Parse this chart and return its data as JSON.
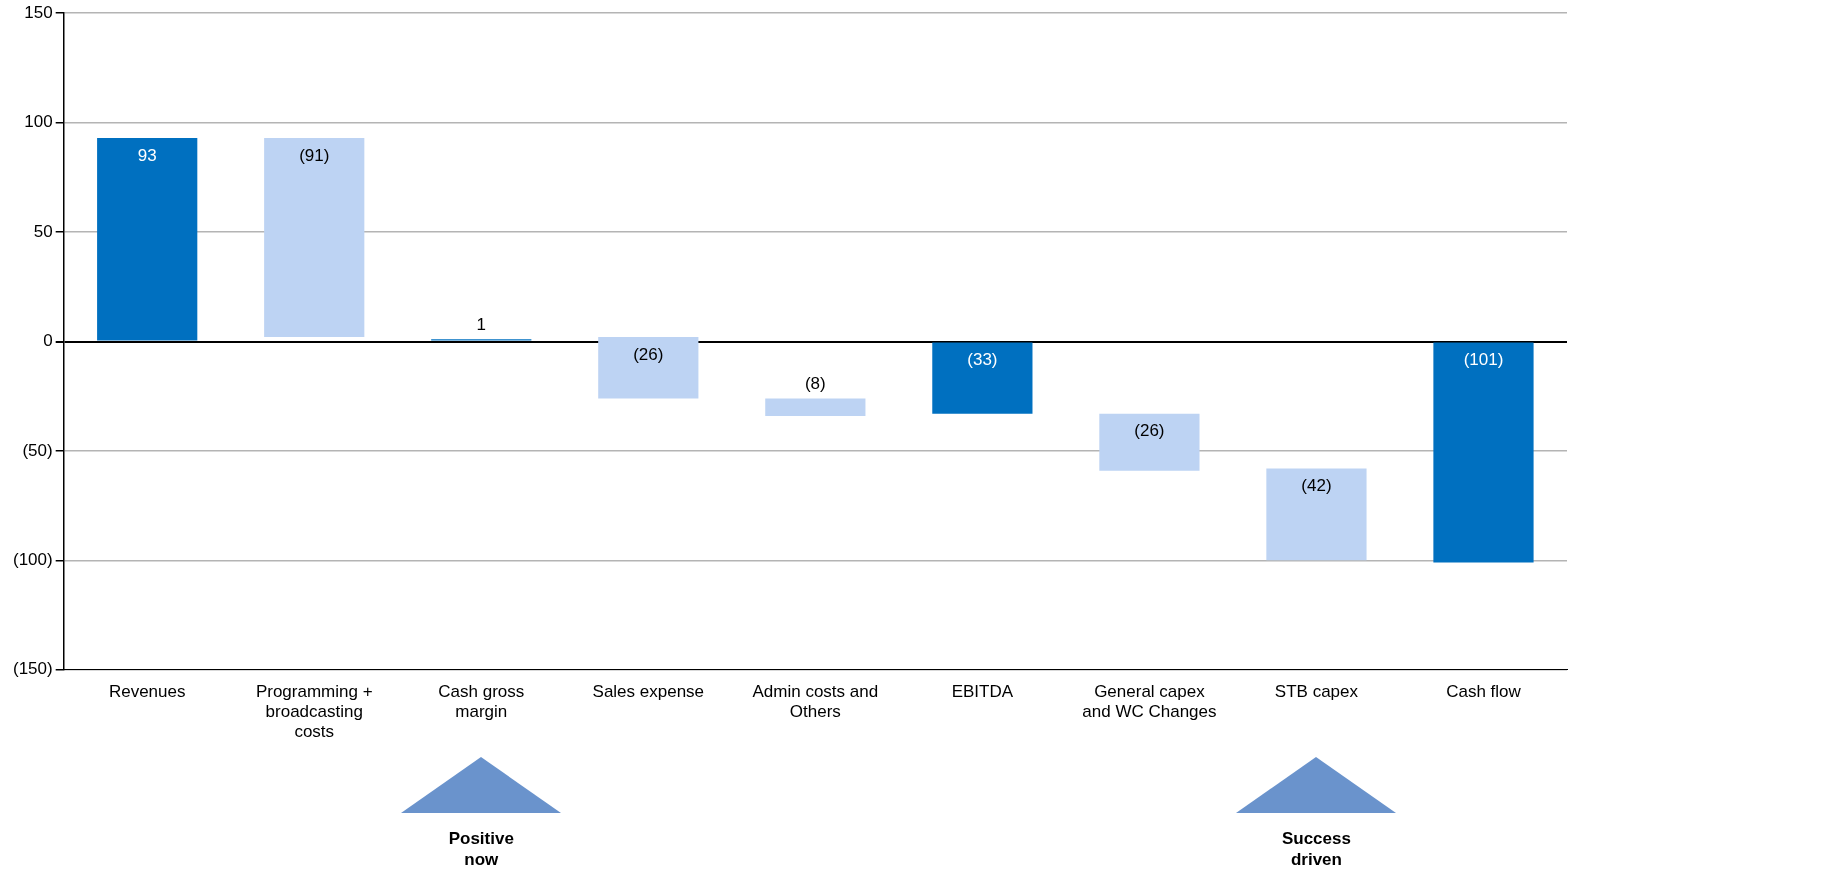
{
  "chart_data": {
    "type": "bar",
    "categories": [
      "Revenues",
      "Programming + broadcasting costs",
      "Cash gross margin",
      "Sales expense",
      "Admin costs and Others",
      "EBITDA",
      "General capex and WC Changes",
      "STB capex",
      "Cash flow"
    ],
    "base": [
      0,
      93,
      0,
      2,
      -26,
      0,
      -33,
      -58,
      0
    ],
    "values": [
      93,
      -91,
      1,
      -28,
      -8,
      -33,
      -26,
      -42,
      -101
    ],
    "value_labels": [
      "93",
      "(91)",
      "1",
      "(26)",
      "(8)",
      "(33)",
      "(26)",
      "(42)",
      "(101)"
    ],
    "colors": [
      "#0070c0",
      "#bdd3f3",
      "#0070c0",
      "#bdd3f3",
      "#bdd3f3",
      "#0070c0",
      "#bdd3f3",
      "#bdd3f3",
      "#0070c0"
    ],
    "ylim": [
      -150,
      150
    ],
    "yticks": [
      {
        "value": -150,
        "label": "(150)"
      },
      {
        "value": -100,
        "label": "(100)"
      },
      {
        "value": -50,
        "label": "(50)"
      },
      0,
      50,
      100,
      150
    ],
    "grid": "y",
    "legend": false,
    "annotations": [
      "Positive now",
      "Success driven"
    ]
  }
}
